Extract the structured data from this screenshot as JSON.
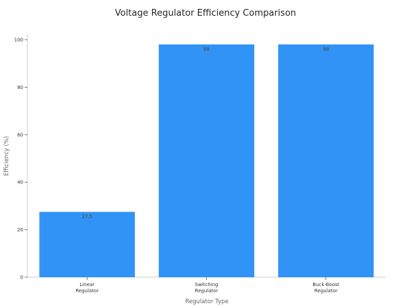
{
  "chart_data": {
    "type": "bar",
    "title": "Voltage Regulator Efficiency Comparison",
    "xlabel": "Regulator Type",
    "ylabel": "Efficiency (%)",
    "categories": [
      [
        "Linear",
        "Regulator"
      ],
      [
        "Switching",
        "Regulator"
      ],
      [
        "Buck-Boost",
        "Regulator"
      ]
    ],
    "values": [
      27.5,
      98,
      98
    ],
    "data_labels": [
      "27.5",
      "98",
      "98"
    ],
    "ylim": [
      0,
      100
    ],
    "yticks": [
      0,
      20,
      40,
      60,
      80,
      100
    ],
    "grid": false,
    "legend": "none",
    "bar_color": "#3193f5"
  }
}
